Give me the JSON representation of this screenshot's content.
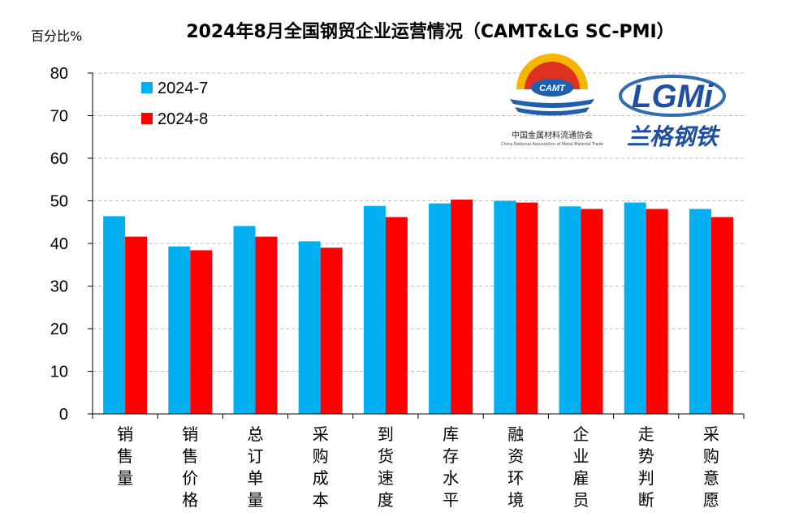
{
  "chart_data": {
    "type": "bar",
    "title": "2024年8月全国钢贸企业运营情况（CAMT&LG SC-PMI）",
    "ylabel": "百分比%",
    "ylim": [
      0,
      80
    ],
    "yticks": [
      0,
      10,
      20,
      30,
      40,
      50,
      60,
      70,
      80
    ],
    "grid": true,
    "legend_position": "top-left",
    "categories": [
      "销售量",
      "销售价格",
      "总订单量",
      "采购成本",
      "到货速度",
      "库存水平",
      "融资环境",
      "企业雇员",
      "走势判断",
      "采购意愿"
    ],
    "series": [
      {
        "name": "2024-7",
        "color": "#00B0F0",
        "values": [
          46.4,
          39.3,
          44.1,
          40.5,
          48.8,
          49.4,
          50.0,
          48.7,
          49.6,
          48.1
        ]
      },
      {
        "name": "2024-8",
        "color": "#FF0000",
        "values": [
          41.6,
          38.4,
          41.6,
          39.0,
          46.2,
          50.3,
          49.6,
          48.1,
          48.1,
          46.2
        ]
      }
    ]
  },
  "logos": {
    "camt": {
      "badge": "CAMT",
      "name": "中国金属材料流通协会",
      "english": "China National Association of Metal Material Trade"
    },
    "lg": {
      "mark": "LGMi",
      "name": "兰格钢铁"
    }
  }
}
